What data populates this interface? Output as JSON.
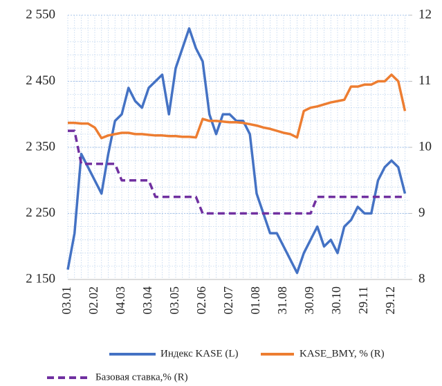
{
  "chart_data": {
    "type": "line",
    "categories": [
      "03.01",
      null,
      null,
      null,
      "02.02",
      null,
      null,
      null,
      "04.03",
      null,
      null,
      null,
      "03.04",
      null,
      null,
      null,
      "03.05",
      null,
      null,
      null,
      "02.06",
      null,
      null,
      null,
      "02.07",
      null,
      null,
      null,
      "01.08",
      null,
      null,
      null,
      "31.08",
      null,
      null,
      null,
      "30.09",
      null,
      null,
      null,
      "30.10",
      null,
      null,
      null,
      "29.11",
      null,
      null,
      null,
      "29.12",
      null,
      null
    ],
    "series": [
      {
        "name": "Индекс KASE (L)",
        "color": "#4472c4",
        "axis": "y",
        "values": [
          2165,
          2220,
          2340,
          2320,
          2300,
          2280,
          2340,
          2390,
          2400,
          2440,
          2420,
          2410,
          2440,
          2450,
          2460,
          2400,
          2470,
          2500,
          2530,
          2500,
          2480,
          2400,
          2370,
          2400,
          2400,
          2390,
          2390,
          2370,
          2280,
          2250,
          2220,
          2220,
          2200,
          2180,
          2160,
          2190,
          2210,
          2230,
          2200,
          2210,
          2190,
          2230,
          2240,
          2260,
          2250,
          2250,
          2300,
          2320,
          2330,
          2320,
          2280
        ]
      },
      {
        "name": "KASE_BMY, % (R)",
        "color": "#ed7d31",
        "axis": "y2",
        "values": [
          10.37,
          10.37,
          10.36,
          10.36,
          10.3,
          10.14,
          10.18,
          10.2,
          10.22,
          10.22,
          10.2,
          10.2,
          10.19,
          10.18,
          10.18,
          10.17,
          10.17,
          10.16,
          10.16,
          10.15,
          10.43,
          10.4,
          10.4,
          10.39,
          10.38,
          10.38,
          10.37,
          10.35,
          10.33,
          10.3,
          10.28,
          10.25,
          10.22,
          10.2,
          10.15,
          10.55,
          10.6,
          10.62,
          10.65,
          10.68,
          10.7,
          10.72,
          10.92,
          10.92,
          10.95,
          10.95,
          11.0,
          11.0,
          11.1,
          11.0,
          10.55
        ]
      },
      {
        "name": "Базовая ставка,% (R)",
        "color": "#7030a0",
        "axis": "y2",
        "dash": true,
        "values": [
          10.25,
          10.25,
          9.75,
          9.75,
          9.75,
          9.75,
          9.75,
          9.75,
          9.5,
          9.5,
          9.5,
          9.5,
          9.5,
          9.25,
          9.25,
          9.25,
          9.25,
          9.25,
          9.25,
          9.25,
          9.0,
          9.0,
          9.0,
          9.0,
          9.0,
          9.0,
          9.0,
          9.0,
          9.0,
          9.0,
          9.0,
          9.0,
          9.0,
          9.0,
          9.0,
          9.0,
          9.0,
          9.25,
          9.25,
          9.25,
          9.25,
          9.25,
          9.25,
          9.25,
          9.25,
          9.25,
          9.25,
          9.25,
          9.25,
          9.25,
          9.25
        ]
      }
    ],
    "ylim": [
      2150,
      2550
    ],
    "yticks": [
      {
        "value": 2150,
        "label": "2 150"
      },
      {
        "value": 2250,
        "label": "2 250"
      },
      {
        "value": 2350,
        "label": "2 350"
      },
      {
        "value": 2450,
        "label": "2 450"
      },
      {
        "value": 2550,
        "label": "2 550"
      }
    ],
    "y2lim": [
      8,
      12
    ],
    "y2ticks": [
      8,
      9,
      10,
      11,
      12
    ],
    "grid": true
  }
}
